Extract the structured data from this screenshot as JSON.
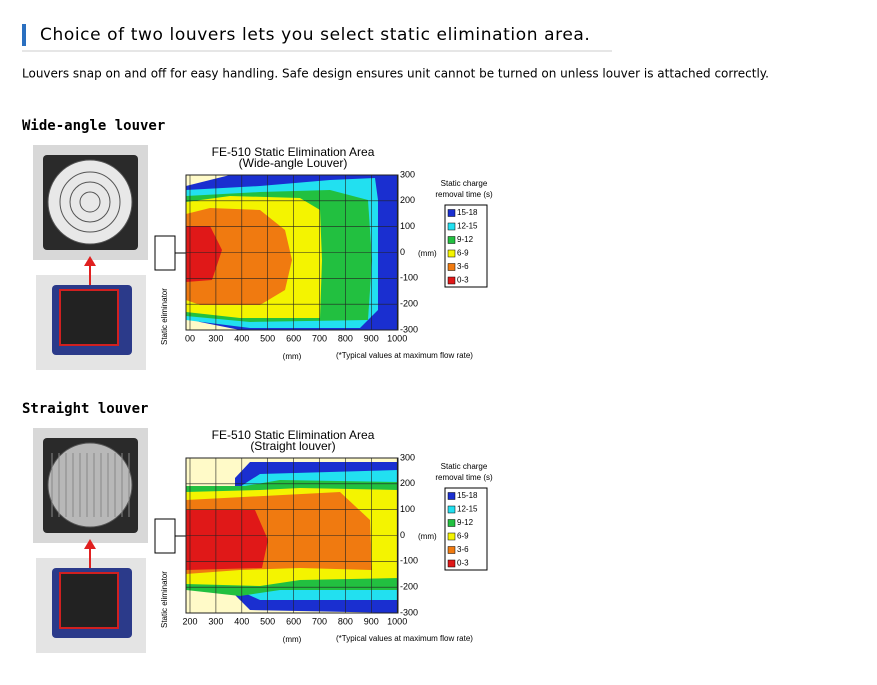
{
  "header": {
    "title": "Choice of two louvers lets you select static elimination area."
  },
  "description": "Louvers snap on and off for easy handling. Safe design ensures unit cannot be turned on unless louver is attached correctly.",
  "sections": [
    {
      "heading": "Wide-angle louver",
      "side_label": "Static eliminator",
      "chart": {
        "title": "FE-510 Static Elimination Area",
        "subtitle": "(Wide-angle Louver)",
        "y_ticks": [
          "300",
          "200",
          "100",
          "0",
          "-100",
          "-200",
          "-300"
        ],
        "y_unit": "(mm)",
        "x_ticks": [
          "00",
          "300",
          "400",
          "500",
          "600",
          "700",
          "800",
          "900",
          "1000"
        ],
        "x_unit": "(mm)",
        "note": "(*Typical values at maximum flow rate)",
        "legend_title": [
          "Static charge",
          "removal time (s)"
        ],
        "legend": [
          {
            "label": "15-18",
            "color": "#1a2fd0"
          },
          {
            "label": "12-15",
            "color": "#22e0f0"
          },
          {
            "label": "9-12",
            "color": "#22c040"
          },
          {
            "label": "6-9",
            "color": "#f4f400"
          },
          {
            "label": "3-6",
            "color": "#f07a10"
          },
          {
            "label": "0-3",
            "color": "#e01818"
          }
        ]
      }
    },
    {
      "heading": "Straight louver",
      "side_label": "Static eliminator",
      "chart": {
        "title": "FE-510 Static Elimination Area",
        "subtitle": "(Straight louver)",
        "y_ticks": [
          "300",
          "200",
          "100",
          "0",
          "-100",
          "-200",
          "-300"
        ],
        "y_unit": "(mm)",
        "x_ticks": [
          "200",
          "300",
          "400",
          "500",
          "600",
          "700",
          "800",
          "900",
          "1000"
        ],
        "x_unit": "(mm)",
        "note": "(*Typical values at maximum flow rate)",
        "legend_title": [
          "Static charge",
          "removal time (s)"
        ],
        "legend": [
          {
            "label": "15-18",
            "color": "#1a2fd0"
          },
          {
            "label": "12-15",
            "color": "#22e0f0"
          },
          {
            "label": "9-12",
            "color": "#22c040"
          },
          {
            "label": "6-9",
            "color": "#f4f400"
          },
          {
            "label": "3-6",
            "color": "#f07a10"
          },
          {
            "label": "0-3",
            "color": "#e01818"
          }
        ]
      }
    }
  ]
}
